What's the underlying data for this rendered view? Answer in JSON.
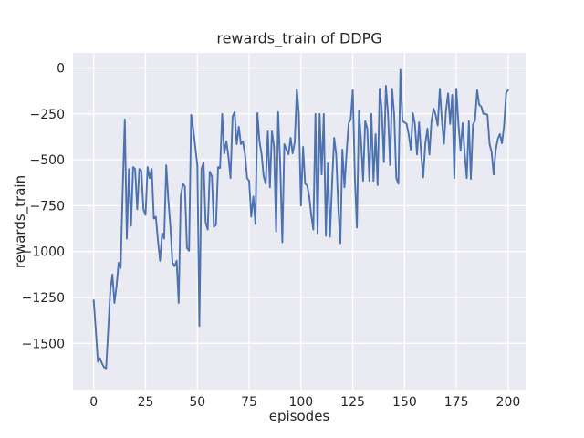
{
  "chart_data": {
    "type": "line",
    "title": "rewards_train of DDPG",
    "xlabel": "episodes",
    "ylabel": "rewards_train",
    "grid": true,
    "legend": false,
    "style": "seaborn-darkgrid",
    "xlim": [
      -10,
      208.4
    ],
    "ylim": [
      -1752,
      82
    ],
    "x_ticks": {
      "values": [
        0,
        25,
        50,
        75,
        100,
        125,
        150,
        175,
        200
      ],
      "labels": [
        "0",
        "25",
        "50",
        "75",
        "100",
        "125",
        "150",
        "175",
        "200"
      ]
    },
    "y_ticks": {
      "values": [
        0,
        -250,
        -500,
        -750,
        -1000,
        -1250,
        -1500
      ],
      "labels": [
        "0",
        "−250",
        "−500",
        "−750",
        "−1000",
        "−1250",
        "−1500"
      ]
    },
    "colors": {
      "line": "#4C72B0",
      "plot_bg": "#EAEAF2",
      "grid": "#FFFFFF",
      "text": "#262626",
      "figure_bg": "#FFFFFF"
    },
    "series": [
      {
        "name": "rewards_train",
        "x_start": 0,
        "x_step": 1,
        "values": [
          -1265,
          -1430,
          -1600,
          -1580,
          -1610,
          -1630,
          -1636,
          -1430,
          -1210,
          -1125,
          -1280,
          -1190,
          -1060,
          -1090,
          -660,
          -280,
          -930,
          -550,
          -860,
          -540,
          -550,
          -770,
          -550,
          -560,
          -770,
          -800,
          -540,
          -600,
          -550,
          -820,
          -810,
          -940,
          -1050,
          -900,
          -930,
          -530,
          -720,
          -860,
          -1060,
          -1080,
          -1050,
          -1280,
          -700,
          -630,
          -646,
          -980,
          -996,
          -255,
          -330,
          -430,
          -530,
          -1405,
          -550,
          -515,
          -840,
          -880,
          -565,
          -590,
          -865,
          -855,
          -540,
          -545,
          -250,
          -465,
          -400,
          -480,
          -600,
          -265,
          -240,
          -415,
          -320,
          -415,
          -400,
          -470,
          -600,
          -615,
          -810,
          -700,
          -850,
          -245,
          -400,
          -470,
          -590,
          -630,
          -345,
          -650,
          -345,
          -430,
          -890,
          -240,
          -530,
          -950,
          -415,
          -445,
          -470,
          -380,
          -465,
          -405,
          -115,
          -250,
          -750,
          -430,
          -630,
          -640,
          -700,
          -805,
          -880,
          -250,
          -900,
          -250,
          -580,
          -250,
          -915,
          -520,
          -920,
          -630,
          -380,
          -470,
          -760,
          -955,
          -445,
          -650,
          -460,
          -300,
          -280,
          -120,
          -600,
          -870,
          -230,
          -400,
          -615,
          -290,
          -330,
          -615,
          -250,
          -615,
          -360,
          -638,
          -113,
          -230,
          -513,
          -97,
          -250,
          -530,
          -113,
          -255,
          -600,
          -630,
          -10,
          -290,
          -296,
          -305,
          -363,
          -446,
          -246,
          -305,
          -471,
          -296,
          -463,
          -596,
          -413,
          -330,
          -471,
          -288,
          -221,
          -255,
          -313,
          -113,
          -280,
          -413,
          -230,
          -138,
          -305,
          -146,
          -600,
          -113,
          -305,
          -450,
          -300,
          -465,
          -600,
          -290,
          -605,
          -310,
          -285,
          -121,
          -200,
          -210,
          -250,
          -250,
          -255,
          -413,
          -460,
          -580,
          -446,
          -385,
          -360,
          -410,
          -315,
          -135,
          -120
        ]
      }
    ]
  }
}
